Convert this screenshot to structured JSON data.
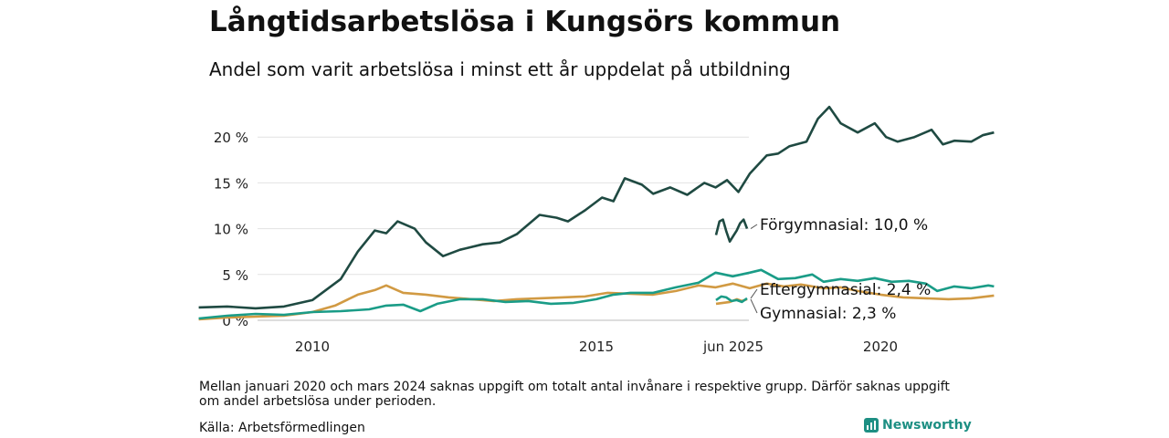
{
  "title": "Långtidsarbetslösa i Kungsörs kommun",
  "subtitle": "Andel som varit arbetslösa i minst ett år uppdelat på utbildning",
  "note": "Mellan januari 2020 och mars 2024 saknas uppgift om totalt antal invånare i respektive grupp. Därför saknas uppgift om andel arbetslösa under perioden.",
  "source": "Källa: Arbetsförmedlingen",
  "brand": "Newsworthy",
  "chart_data": {
    "type": "line",
    "title": "Långtidsarbetslösa i Kungsörs kommun",
    "subtitle": "Andel som varit arbetslösa i minst ett år uppdelat på utbildning",
    "xlabel": "",
    "ylabel": "",
    "ylim": [
      0,
      23.5
    ],
    "y_unit": "%",
    "y_ticks": [
      0,
      5,
      10,
      15,
      20
    ],
    "y_tick_labels": [
      "0 %",
      "5 %",
      "10 %",
      "15 %",
      "20 %"
    ],
    "x_ticks": [
      2010,
      2015,
      2020
    ],
    "x_tick_labels": [
      "2010",
      "2015",
      "2020"
    ],
    "recent_label": "jun 2025",
    "grid": true,
    "legend": "direct labels at right",
    "series": [
      {
        "name": "Förgymnasial",
        "end_label": "Förgymnasial: 10,0 %",
        "color": "#1f4a42",
        "points": [
          [
            2008.0,
            1.4
          ],
          [
            2008.5,
            1.5
          ],
          [
            2009.0,
            1.3
          ],
          [
            2009.5,
            1.5
          ],
          [
            2010.0,
            2.2
          ],
          [
            2010.5,
            4.5
          ],
          [
            2010.8,
            7.5
          ],
          [
            2011.1,
            9.8
          ],
          [
            2011.3,
            9.5
          ],
          [
            2011.5,
            10.8
          ],
          [
            2011.8,
            10.0
          ],
          [
            2012.0,
            8.5
          ],
          [
            2012.3,
            7.0
          ],
          [
            2012.6,
            7.7
          ],
          [
            2013.0,
            8.3
          ],
          [
            2013.3,
            8.5
          ],
          [
            2013.6,
            9.4
          ],
          [
            2014.0,
            11.5
          ],
          [
            2014.3,
            11.2
          ],
          [
            2014.5,
            10.8
          ],
          [
            2014.8,
            12.0
          ],
          [
            2015.1,
            13.4
          ],
          [
            2015.3,
            13.0
          ],
          [
            2015.5,
            15.5
          ],
          [
            2015.8,
            14.8
          ],
          [
            2016.0,
            13.8
          ],
          [
            2016.3,
            14.5
          ],
          [
            2016.6,
            13.7
          ],
          [
            2016.9,
            15.0
          ],
          [
            2017.1,
            14.5
          ],
          [
            2017.3,
            15.3
          ],
          [
            2017.5,
            14.0
          ],
          [
            2017.7,
            16.0
          ],
          [
            2018.0,
            18.0
          ],
          [
            2018.2,
            18.2
          ],
          [
            2018.4,
            19.0
          ],
          [
            2018.7,
            19.5
          ],
          [
            2018.9,
            22.0
          ],
          [
            2019.1,
            23.3
          ],
          [
            2019.3,
            21.5
          ],
          [
            2019.6,
            20.5
          ],
          [
            2019.9,
            21.5
          ],
          [
            2020.1,
            20.0
          ],
          [
            2020.3,
            19.5
          ],
          [
            2020.6,
            20.0
          ],
          [
            2020.9,
            20.8
          ],
          [
            2021.1,
            19.2
          ],
          [
            2021.3,
            19.6
          ],
          [
            2021.6,
            19.5
          ],
          [
            2021.8,
            20.2
          ],
          [
            2022.0,
            20.5
          ]
        ],
        "recent_points": [
          [
            2025.0,
            9.3
          ],
          [
            2025.1,
            10.8
          ],
          [
            2025.2,
            11.0
          ],
          [
            2025.3,
            9.7
          ],
          [
            2025.4,
            8.6
          ],
          [
            2025.5,
            9.2
          ],
          [
            2025.6,
            9.8
          ],
          [
            2025.7,
            10.6
          ],
          [
            2025.8,
            11.0
          ],
          [
            2025.9,
            10.0
          ]
        ],
        "last_value": 10.0
      },
      {
        "name": "Eftergymnasial",
        "end_label": "Eftergymnasial:  2,4 %",
        "color": "#1a9c87",
        "points": [
          [
            2008.0,
            0.2
          ],
          [
            2008.5,
            0.5
          ],
          [
            2009.0,
            0.7
          ],
          [
            2009.5,
            0.6
          ],
          [
            2010.0,
            0.9
          ],
          [
            2010.5,
            1.0
          ],
          [
            2011.0,
            1.2
          ],
          [
            2011.3,
            1.6
          ],
          [
            2011.6,
            1.7
          ],
          [
            2011.9,
            1.0
          ],
          [
            2012.2,
            1.8
          ],
          [
            2012.6,
            2.3
          ],
          [
            2013.0,
            2.3
          ],
          [
            2013.4,
            2.0
          ],
          [
            2013.8,
            2.1
          ],
          [
            2014.2,
            1.8
          ],
          [
            2014.6,
            1.9
          ],
          [
            2015.0,
            2.3
          ],
          [
            2015.3,
            2.8
          ],
          [
            2015.6,
            3.0
          ],
          [
            2016.0,
            3.0
          ],
          [
            2016.4,
            3.6
          ],
          [
            2016.8,
            4.1
          ],
          [
            2017.1,
            5.2
          ],
          [
            2017.4,
            4.8
          ],
          [
            2017.7,
            5.2
          ],
          [
            2017.9,
            5.5
          ],
          [
            2018.2,
            4.5
          ],
          [
            2018.5,
            4.6
          ],
          [
            2018.8,
            5.0
          ],
          [
            2019.0,
            4.2
          ],
          [
            2019.3,
            4.5
          ],
          [
            2019.6,
            4.3
          ],
          [
            2019.9,
            4.6
          ],
          [
            2020.2,
            4.2
          ],
          [
            2020.5,
            4.3
          ],
          [
            2020.8,
            4.0
          ],
          [
            2021.0,
            3.2
          ],
          [
            2021.3,
            3.7
          ],
          [
            2021.6,
            3.5
          ],
          [
            2021.9,
            3.8
          ],
          [
            2022.0,
            3.7
          ]
        ],
        "recent_points": [
          [
            2025.0,
            2.2
          ],
          [
            2025.15,
            2.6
          ],
          [
            2025.3,
            2.5
          ],
          [
            2025.45,
            2.1
          ],
          [
            2025.6,
            2.2
          ],
          [
            2025.75,
            2.0
          ],
          [
            2025.9,
            2.4
          ]
        ],
        "last_value": 2.4
      },
      {
        "name": "Gymnasial",
        "end_label": "Gymnasial:  2,3 %",
        "color": "#d19a43",
        "points": [
          [
            2008.0,
            0.1
          ],
          [
            2008.5,
            0.3
          ],
          [
            2009.0,
            0.4
          ],
          [
            2009.5,
            0.5
          ],
          [
            2010.0,
            0.9
          ],
          [
            2010.4,
            1.6
          ],
          [
            2010.8,
            2.8
          ],
          [
            2011.1,
            3.3
          ],
          [
            2011.3,
            3.8
          ],
          [
            2011.6,
            3.0
          ],
          [
            2012.0,
            2.8
          ],
          [
            2012.4,
            2.5
          ],
          [
            2012.8,
            2.3
          ],
          [
            2013.2,
            2.1
          ],
          [
            2013.6,
            2.3
          ],
          [
            2014.0,
            2.4
          ],
          [
            2014.4,
            2.5
          ],
          [
            2014.8,
            2.6
          ],
          [
            2015.2,
            3.0
          ],
          [
            2015.6,
            2.9
          ],
          [
            2016.0,
            2.8
          ],
          [
            2016.4,
            3.2
          ],
          [
            2016.8,
            3.8
          ],
          [
            2017.1,
            3.6
          ],
          [
            2017.4,
            4.0
          ],
          [
            2017.7,
            3.5
          ],
          [
            2018.0,
            4.0
          ],
          [
            2018.3,
            3.7
          ],
          [
            2018.6,
            3.9
          ],
          [
            2019.0,
            3.5
          ],
          [
            2019.3,
            3.6
          ],
          [
            2019.6,
            3.2
          ],
          [
            2020.0,
            2.8
          ],
          [
            2020.4,
            2.5
          ],
          [
            2020.8,
            2.4
          ],
          [
            2021.2,
            2.3
          ],
          [
            2021.6,
            2.4
          ],
          [
            2022.0,
            2.7
          ]
        ],
        "recent_points": [
          [
            2025.0,
            1.8
          ],
          [
            2025.2,
            1.9
          ],
          [
            2025.4,
            2.0
          ],
          [
            2025.6,
            2.3
          ],
          [
            2025.75,
            2.1
          ],
          [
            2025.9,
            2.3
          ]
        ],
        "last_value": 2.3
      }
    ]
  }
}
